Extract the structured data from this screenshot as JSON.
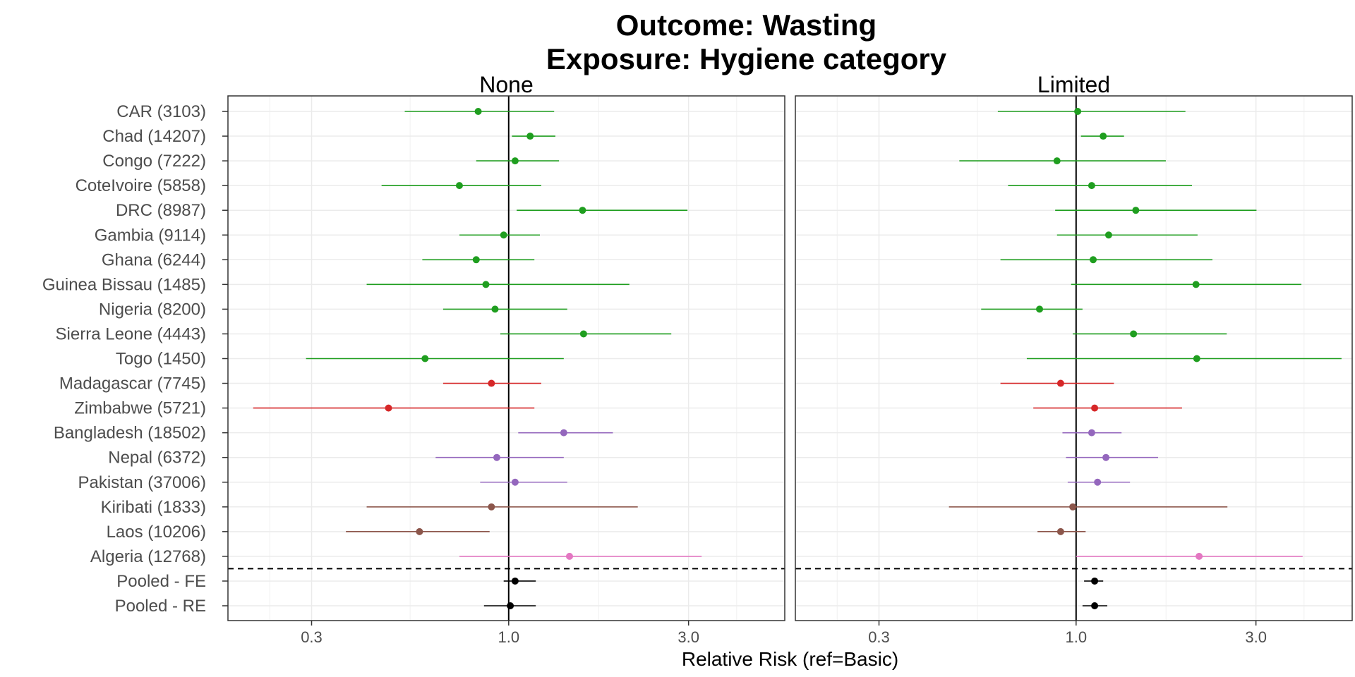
{
  "chart_data": {
    "type": "forest",
    "title": "Outcome: Wasting",
    "subtitle": "Exposure: Hygiene category",
    "xlabel": "Relative Risk (ref=Basic)",
    "x_scale": "log",
    "x_ticks": [
      "0.3",
      "1.0",
      "3.0"
    ],
    "x_tick_values": [
      0.3,
      1.0,
      3.0
    ],
    "xlim": [
      0.18,
      5.4
    ],
    "reference_line": 1.0,
    "grid": true,
    "colors": {
      "Africa": "#1f9e1f",
      "Southern Africa": "#d62728",
      "South Asia": "#9467bd",
      "Oceania/SE Asia": "#8c564b",
      "North Africa": "#e377c2",
      "Pooled": "#000000"
    },
    "rows": [
      {
        "label": "CAR (3103)",
        "group": "Africa"
      },
      {
        "label": "Chad (14207)",
        "group": "Africa"
      },
      {
        "label": "Congo (7222)",
        "group": "Africa"
      },
      {
        "label": "CoteIvoire (5858)",
        "group": "Africa"
      },
      {
        "label": "DRC (8987)",
        "group": "Africa"
      },
      {
        "label": "Gambia (9114)",
        "group": "Africa"
      },
      {
        "label": "Ghana (6244)",
        "group": "Africa"
      },
      {
        "label": "Guinea Bissau (1485)",
        "group": "Africa"
      },
      {
        "label": "Nigeria (8200)",
        "group": "Africa"
      },
      {
        "label": "Sierra Leone (4443)",
        "group": "Africa"
      },
      {
        "label": "Togo (1450)",
        "group": "Africa"
      },
      {
        "label": "Madagascar (7745)",
        "group": "Southern Africa"
      },
      {
        "label": "Zimbabwe (5721)",
        "group": "Southern Africa"
      },
      {
        "label": "Bangladesh (18502)",
        "group": "South Asia"
      },
      {
        "label": "Nepal (6372)",
        "group": "South Asia"
      },
      {
        "label": "Pakistan (37006)",
        "group": "South Asia"
      },
      {
        "label": "Kiribati (1833)",
        "group": "Oceania/SE Asia"
      },
      {
        "label": "Laos (10206)",
        "group": "Oceania/SE Asia"
      },
      {
        "label": "Algeria (12768)",
        "group": "North Africa"
      },
      {
        "label": "Pooled - FE",
        "group": "Pooled"
      },
      {
        "label": "Pooled - RE",
        "group": "Pooled"
      }
    ],
    "separator_after_row": 19,
    "panels": [
      {
        "name": "None",
        "estimates": [
          [
            0.83,
            0.53,
            1.32
          ],
          [
            1.14,
            1.02,
            1.33
          ],
          [
            1.04,
            0.82,
            1.36
          ],
          [
            0.74,
            0.46,
            1.22
          ],
          [
            1.57,
            1.05,
            2.98
          ],
          [
            0.97,
            0.74,
            1.21
          ],
          [
            0.82,
            0.59,
            1.17
          ],
          [
            0.87,
            0.42,
            2.09
          ],
          [
            0.92,
            0.67,
            1.43
          ],
          [
            1.58,
            0.95,
            2.7
          ],
          [
            0.6,
            0.29,
            1.4
          ],
          [
            0.9,
            0.67,
            1.22
          ],
          [
            0.48,
            0.21,
            1.17
          ],
          [
            1.4,
            1.06,
            1.89
          ],
          [
            0.93,
            0.64,
            1.4
          ],
          [
            1.04,
            0.84,
            1.43
          ],
          [
            0.9,
            0.42,
            2.2
          ],
          [
            0.58,
            0.37,
            0.89
          ],
          [
            1.45,
            0.74,
            3.25
          ],
          [
            1.04,
            0.97,
            1.18
          ],
          [
            1.01,
            0.86,
            1.18
          ]
        ]
      },
      {
        "name": "Limited",
        "estimates": [
          [
            1.01,
            0.62,
            1.95
          ],
          [
            1.18,
            1.03,
            1.34
          ],
          [
            0.89,
            0.49,
            1.73
          ],
          [
            1.1,
            0.66,
            2.03
          ],
          [
            1.44,
            0.88,
            3.01
          ],
          [
            1.22,
            0.89,
            2.1
          ],
          [
            1.11,
            0.63,
            2.3
          ],
          [
            2.08,
            0.97,
            3.96
          ],
          [
            0.8,
            0.56,
            1.04
          ],
          [
            1.42,
            0.98,
            2.51
          ],
          [
            2.09,
            0.74,
            5.06
          ],
          [
            0.91,
            0.63,
            1.26
          ],
          [
            1.12,
            0.77,
            1.91
          ],
          [
            1.1,
            0.92,
            1.32
          ],
          [
            1.2,
            0.94,
            1.65
          ],
          [
            1.14,
            0.95,
            1.39
          ],
          [
            0.98,
            0.46,
            2.52
          ],
          [
            0.91,
            0.79,
            1.06
          ],
          [
            2.12,
            1.0,
            3.99
          ],
          [
            1.12,
            1.05,
            1.18
          ],
          [
            1.12,
            1.04,
            1.21
          ]
        ]
      }
    ]
  }
}
